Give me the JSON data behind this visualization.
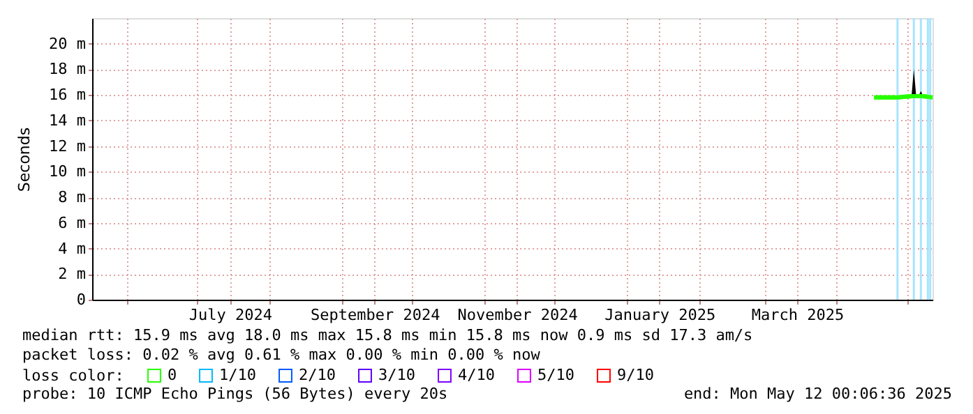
{
  "chart_data": {
    "type": "line",
    "ylabel": "Seconds",
    "legend_title": "loss color:",
    "legend": "bottom",
    "x": [
      "2025-04-17",
      "2025-04-27",
      "2025-05-03",
      "2025-05-04",
      "2025-05-05",
      "2025-05-06",
      "2025-05-07",
      "2025-05-08",
      "2025-05-12"
    ],
    "series": [
      {
        "name": "0",
        "color": "#26ff00",
        "values": [
          15.8,
          15.8,
          15.9,
          15.9,
          15.9,
          15.9,
          15.9,
          15.9,
          15.8
        ],
        "lower": [
          15.8,
          15.8,
          15.9,
          15.9,
          15.9,
          15.9,
          15.9,
          15.9,
          15.8
        ],
        "upper": [
          15.8,
          15.8,
          15.9,
          18.0,
          15.9,
          15.9,
          16.3,
          15.9,
          15.8
        ]
      },
      {
        "name": "1/10",
        "color": "#00b8ff",
        "values": [
          null,
          null,
          null,
          null,
          null,
          null,
          null,
          null,
          null
        ]
      },
      {
        "name": "2/10",
        "color": "#0059ff",
        "values": [
          null,
          null,
          null,
          null,
          null,
          null,
          null,
          null,
          null
        ]
      },
      {
        "name": "3/10",
        "color": "#5e00ff",
        "values": [
          null,
          null,
          null,
          null,
          null,
          null,
          null,
          null,
          null
        ]
      },
      {
        "name": "4/10",
        "color": "#7e00ff",
        "values": [
          null,
          null,
          null,
          null,
          null,
          null,
          null,
          null,
          null
        ]
      },
      {
        "name": "5/10",
        "color": "#dd00ff",
        "values": [
          null,
          null,
          null,
          null,
          null,
          null,
          null,
          null,
          null
        ]
      },
      {
        "name": "9/10",
        "color": "#ff0000",
        "values": [
          null,
          null,
          null,
          null,
          null,
          null,
          null,
          null,
          null
        ]
      }
    ],
    "xlim": [
      "2024-05-17",
      "2025-05-12"
    ],
    "xticks": [
      {
        "value": "2024-06-01",
        "label": null
      },
      {
        "value": "2024-07-01",
        "label": null
      },
      {
        "value": "2024-07-15",
        "label": "July 2024"
      },
      {
        "value": "2024-08-01",
        "label": null
      },
      {
        "value": "2024-09-01",
        "label": null
      },
      {
        "value": "2024-09-15",
        "label": "September 2024"
      },
      {
        "value": "2024-10-01",
        "label": null
      },
      {
        "value": "2024-11-01",
        "label": null
      },
      {
        "value": "2024-11-15",
        "label": "November 2024"
      },
      {
        "value": "2024-12-01",
        "label": null
      },
      {
        "value": "2025-01-01",
        "label": null
      },
      {
        "value": "2025-01-15",
        "label": "January 2025"
      },
      {
        "value": "2025-02-01",
        "label": null
      },
      {
        "value": "2025-03-01",
        "label": null
      },
      {
        "value": "2025-03-15",
        "label": "March 2025"
      },
      {
        "value": "2025-04-01",
        "label": null
      },
      {
        "value": "2025-05-01",
        "label": null
      }
    ],
    "ylim": [
      0,
      22
    ],
    "yticks": [
      0,
      {
        "value": 2,
        "label": "2 m"
      },
      {
        "value": 4,
        "label": "4 m"
      },
      {
        "value": 6,
        "label": "6 m"
      },
      {
        "value": 8,
        "label": "8 m"
      },
      {
        "value": 10,
        "label": "10 m"
      },
      {
        "value": 12,
        "label": "12 m"
      },
      {
        "value": 14,
        "label": "14 m"
      },
      {
        "value": 16,
        "label": "16 m"
      },
      {
        "value": 18,
        "label": "18 m"
      },
      {
        "value": 20,
        "label": "20 m"
      }
    ],
    "grid": true,
    "ref_lines": [
      {
        "axis": "x",
        "value": "2025-04-27",
        "label": null,
        "color": "#a8e4ff"
      },
      {
        "axis": "x",
        "value": "2025-05-04",
        "label": null,
        "color": "#a8e4ff"
      },
      {
        "axis": "x",
        "value": "2025-05-07",
        "label": null,
        "color": "#a8e4ff"
      },
      {
        "axis": "x",
        "value": "2025-05-10",
        "label": null,
        "color": "#a8e4ff"
      },
      {
        "axis": "x",
        "value": "2025-05-11",
        "label": null,
        "color": "#a8e4ff"
      }
    ],
    "annotations": [
      "median rtt:  15.9 ms avg  18.0 ms max  15.8 ms min  15.8 ms now  0.9 ms sd  17.3   am/s",
      "packet loss: 0.02 % avg  0.61 % max  0.00 % min  0.00 % now",
      "probe:       10 ICMP Echo Pings (56 Bytes) every 20s",
      "end: Mon May 12 00:06:36 2025"
    ]
  }
}
